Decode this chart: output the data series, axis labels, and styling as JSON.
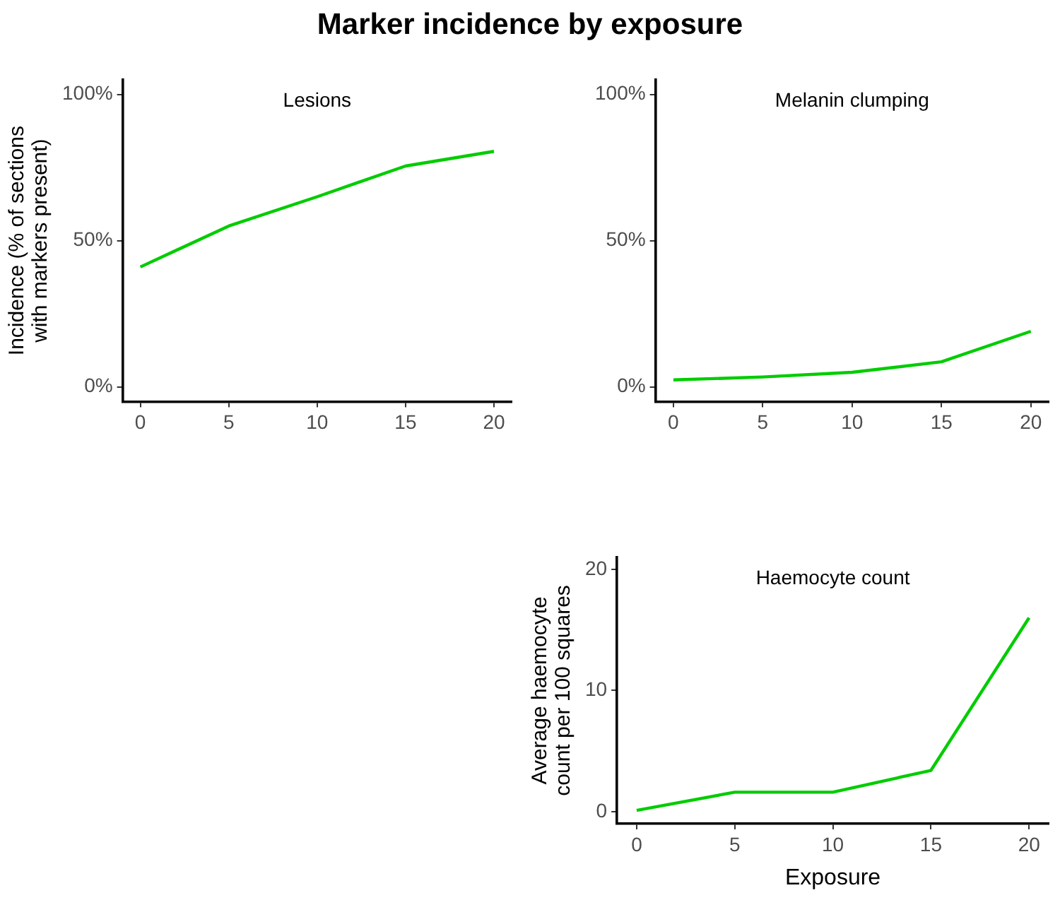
{
  "chart_data": [
    {
      "type": "line",
      "title": "Marker incidence by exposure",
      "subtitle": "Lesions",
      "ylabel": "Incidence (% of sections with markers present)",
      "x": [
        0,
        5,
        10,
        15,
        20
      ],
      "series": [
        {
          "color": "#00cc00",
          "values": [
            41,
            55,
            65,
            75.5,
            80.5
          ]
        }
      ],
      "xlim": [
        -1,
        21
      ],
      "xticks": [
        0,
        5,
        10,
        15,
        20
      ],
      "ylim": [
        -5,
        105
      ],
      "yticks": [
        {
          "value": 0,
          "label": "0%"
        },
        {
          "value": 50,
          "label": "50%"
        },
        {
          "value": 100,
          "label": "100%"
        }
      ],
      "grid": false,
      "legend": false,
      "marker": "none",
      "line_style": "solid"
    },
    {
      "type": "line",
      "subtitle": "Melanin clumping",
      "x": [
        0,
        5,
        10,
        15,
        20
      ],
      "series": [
        {
          "color": "#00cc00",
          "values": [
            2.4,
            3.4,
            5,
            8.6,
            19
          ]
        }
      ],
      "xlim": [
        -1,
        21
      ],
      "xticks": [
        0,
        5,
        10,
        15,
        20
      ],
      "ylim": [
        -5,
        105
      ],
      "yticks": [
        {
          "value": 0,
          "label": "0%"
        },
        {
          "value": 50,
          "label": "50%"
        },
        {
          "value": 100,
          "label": "100%"
        }
      ],
      "grid": false,
      "legend": false,
      "marker": "none",
      "line_style": "solid"
    },
    {
      "type": "line",
      "subtitle": "Haemocyte count",
      "xlabel": "Exposure",
      "ylabel": "Average haemocyte count per 100 squares",
      "x": [
        0,
        5,
        10,
        15,
        20
      ],
      "series": [
        {
          "color": "#00cc00",
          "values": [
            0.1,
            1.6,
            1.6,
            3.4,
            16
          ]
        }
      ],
      "xlim": [
        -1,
        21
      ],
      "xticks": [
        0,
        5,
        10,
        15,
        20
      ],
      "ylim": [
        -1,
        21
      ],
      "yticks": [
        0,
        10,
        20
      ],
      "grid": false,
      "legend": false,
      "marker": "none",
      "line_style": "solid"
    }
  ]
}
